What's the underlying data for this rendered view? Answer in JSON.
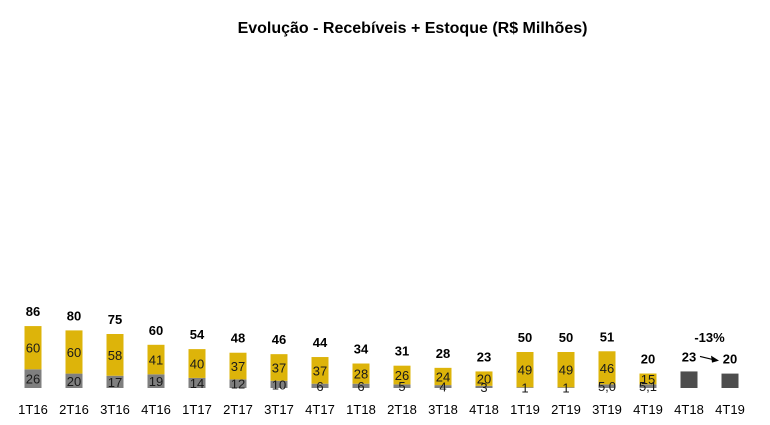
{
  "chart_data": {
    "type": "bar",
    "title": "Evolução - Recebíveis + Estoque (R$ Milhões)",
    "xlabel": "",
    "ylabel": "",
    "categories": [
      "1T16",
      "2T16",
      "3T16",
      "4T16",
      "1T17",
      "2T17",
      "3T17",
      "4T17",
      "1T18",
      "2T18",
      "3T18",
      "4T18",
      "1T19",
      "2T19",
      "3T19",
      "4T19"
    ],
    "stacked": true,
    "bottom_labels": [
      "26",
      "20",
      "17",
      "19",
      "14",
      "12",
      "10",
      "6",
      "6",
      "5",
      "4",
      "3",
      "1",
      "1",
      "5,0",
      "5,1"
    ],
    "top_labels": [
      "60",
      "60",
      "58",
      "41",
      "40",
      "37",
      "37",
      "37",
      "28",
      "26",
      "24",
      "20",
      "49",
      "49",
      "46",
      "15"
    ],
    "series": [
      {
        "values": [
          26,
          20,
          17,
          19,
          14,
          12,
          10,
          6,
          6,
          5,
          4,
          3,
          1,
          1,
          5.0,
          5.1
        ],
        "color": "#7f7f7f"
      },
      {
        "values": [
          60,
          60,
          58,
          41,
          40,
          37,
          37,
          37,
          28,
          26,
          24,
          20,
          49,
          49,
          46,
          15
        ],
        "color": "#ddb40a"
      }
    ],
    "totals": [
      "86",
      "80",
      "75",
      "60",
      "54",
      "48",
      "46",
      "44",
      "34",
      "31",
      "28",
      "23",
      "50",
      "50",
      "51",
      "20"
    ],
    "comparison": {
      "categories": [
        "4T18",
        "4T19"
      ],
      "values": [
        23,
        20
      ],
      "labels": [
        "23",
        "20"
      ],
      "color": "#4d4d4d",
      "change_label": "-13%"
    },
    "grid": false,
    "legend": "none"
  }
}
